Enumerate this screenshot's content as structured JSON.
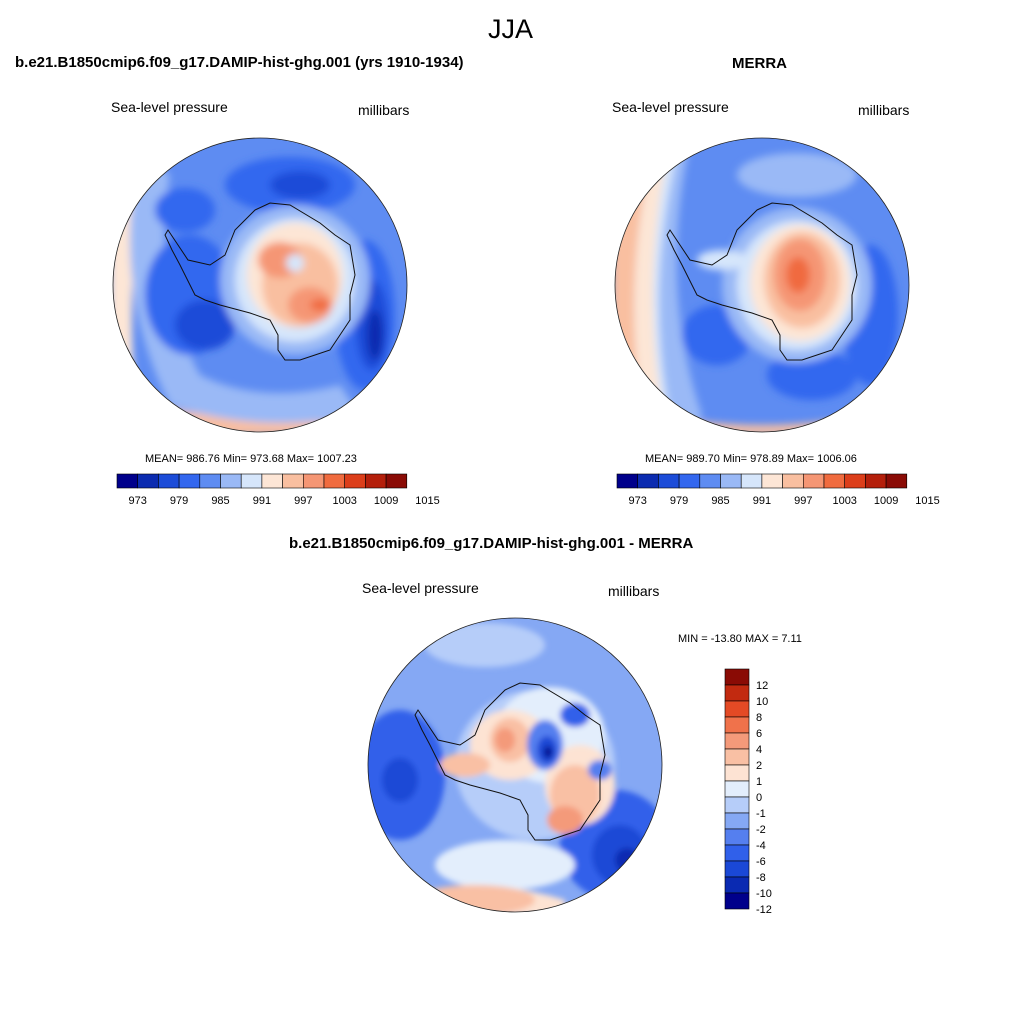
{
  "page": {
    "title": "JJA"
  },
  "palette": {
    "colorbar_13": [
      "#00008b",
      "#0b2bb0",
      "#1c4cd8",
      "#3367ef",
      "#5e8cf2",
      "#9ab9f6",
      "#d6e6fb",
      "#fde6d6",
      "#f9bfa0",
      "#f59674",
      "#f06b3f",
      "#dc3e1a",
      "#b41f0b",
      "#8a0b05"
    ],
    "diff_14": [
      "#00008b",
      "#0a2ab2",
      "#1a48d6",
      "#3060ea",
      "#557fef",
      "#85a8f4",
      "#b6cdf9",
      "#e3eefc",
      "#fde3d3",
      "#f9c0a4",
      "#f49a7a",
      "#f0724b",
      "#e44a25",
      "#c22a10",
      "#8a0b05"
    ]
  },
  "panels": [
    {
      "id": "model",
      "title": "b.e21.B1850cmip6.f09_g17.DAMIP-hist-ghg.001 (yrs 1910-1934)",
      "left_label": "Sea-level pressure",
      "right_label": "millibars",
      "stats": "MEAN= 986.76  Min= 973.68  Max= 1007.23",
      "colorbar_ticks": [
        "973",
        "979",
        "985",
        "991",
        "997",
        "1003",
        "1009",
        "1015"
      ]
    },
    {
      "id": "merra",
      "title": "MERRA",
      "left_label": "Sea-level pressure",
      "right_label": "millibars",
      "stats": "MEAN= 989.70  Min= 978.89  Max= 1006.06",
      "colorbar_ticks": [
        "973",
        "979",
        "985",
        "991",
        "997",
        "1003",
        "1009",
        "1015"
      ]
    },
    {
      "id": "diff",
      "title": "b.e21.B1850cmip6.f09_g17.DAMIP-hist-ghg.001 - MERRA",
      "left_label": "Sea-level pressure",
      "right_label": "millibars",
      "stats": "MIN = -13.80 MAX =   7.11",
      "colorbar_ticks": [
        "12",
        "10",
        "8",
        "6",
        "4",
        "2",
        "1",
        "0",
        "-1",
        "-2",
        "-4",
        "-6",
        "-8",
        "-10",
        "-12"
      ]
    }
  ]
}
